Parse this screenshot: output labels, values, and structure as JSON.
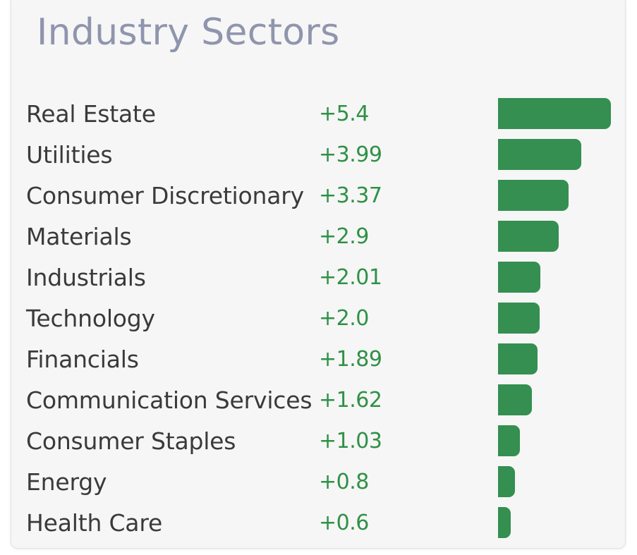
{
  "colors": {
    "card_background": "#f6f6f6",
    "title": "#9095ae",
    "label": "#3a3a3a",
    "value": "#2f9146",
    "bar": "#348f51"
  },
  "chart_data": {
    "type": "bar",
    "orientation": "horizontal",
    "title": "Industry Sectors",
    "categories": [
      "Real Estate",
      "Utilities",
      "Consumer Discretionary",
      "Materials",
      "Industrials",
      "Technology",
      "Financials",
      "Communication Services",
      "Consumer Staples",
      "Energy",
      "Health Care"
    ],
    "values": [
      5.4,
      3.99,
      3.37,
      2.9,
      2.01,
      2.0,
      1.89,
      1.62,
      1.03,
      0.8,
      0.6
    ],
    "value_labels": [
      "+5.4",
      "+3.99",
      "+3.37",
      "+2.9",
      "+2.01",
      "+2.0",
      "+1.89",
      "+1.62",
      "+1.03",
      "+0.8",
      "+0.6"
    ],
    "xlim": [
      0,
      5.4
    ],
    "grid": false,
    "legend": "none"
  }
}
